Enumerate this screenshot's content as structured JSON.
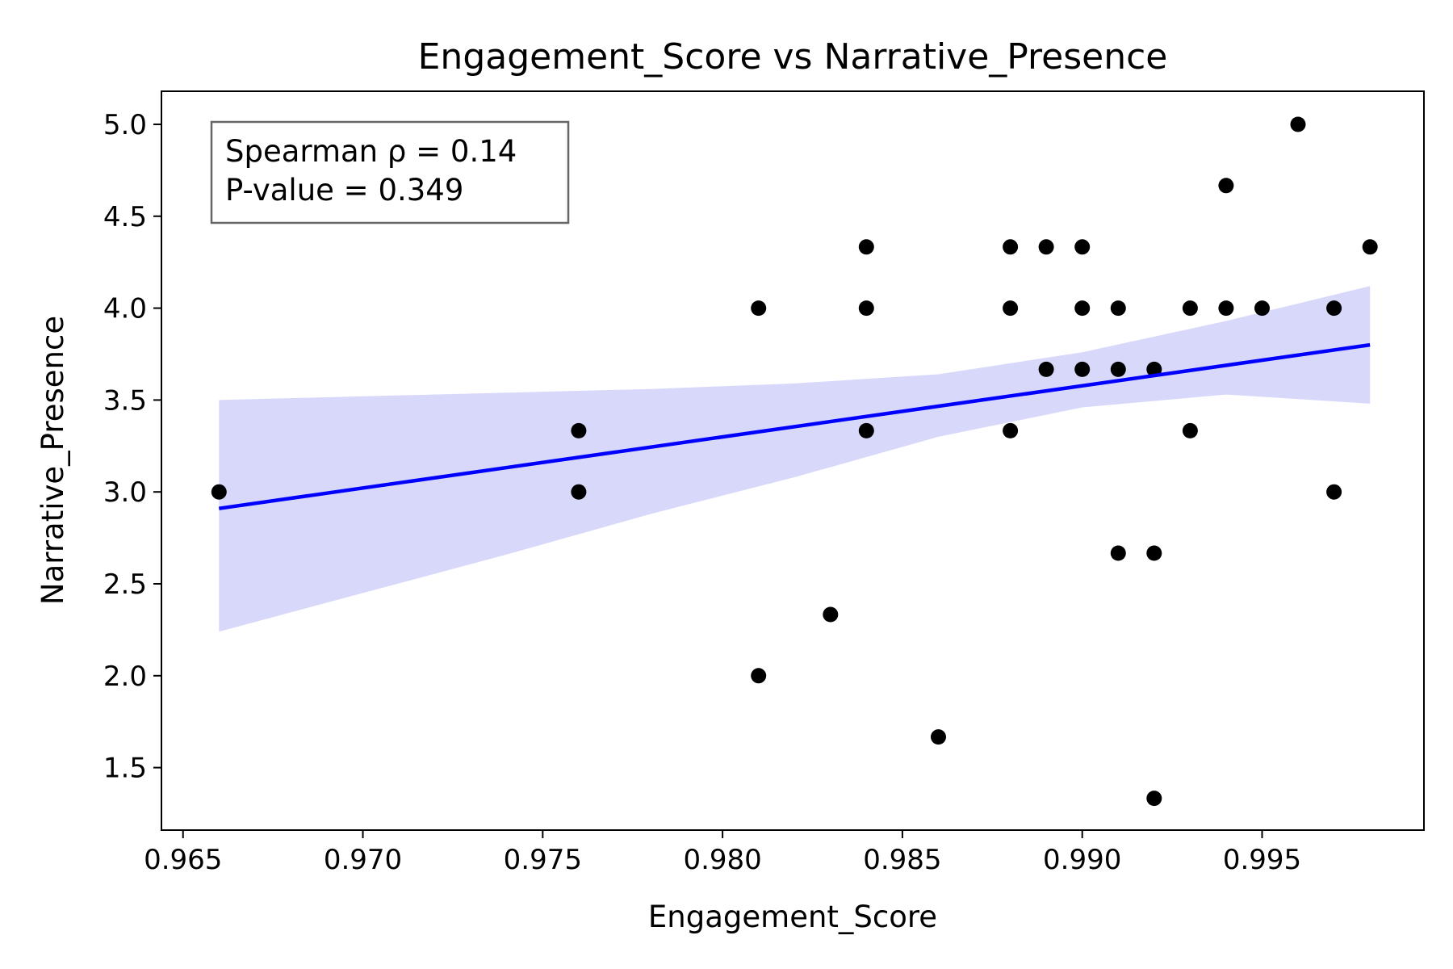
{
  "chart_data": {
    "type": "scatter",
    "title": "Engagement_Score vs Narrative_Presence",
    "xlabel": "Engagement_Score",
    "ylabel": "Narrative_Presence",
    "xlim": [
      0.9644,
      0.9995
    ],
    "ylim": [
      1.16,
      5.18
    ],
    "xticks": [
      "0.965",
      "0.970",
      "0.975",
      "0.980",
      "0.985",
      "0.990",
      "0.995"
    ],
    "yticks": [
      "1.5",
      "2.0",
      "2.5",
      "3.0",
      "3.5",
      "4.0",
      "4.5",
      "5.0"
    ],
    "grid": false,
    "annotation": [
      "Spearman ρ = 0.14",
      "P-value = 0.349"
    ],
    "annotation_position": "top-left",
    "colors": {
      "points": "#000000",
      "fit_line": "#0000ff",
      "confidence_band": "#d8d8fb",
      "box_border": "#666666"
    },
    "points": [
      {
        "x": 0.966,
        "y": 3.0
      },
      {
        "x": 0.976,
        "y": 3.333
      },
      {
        "x": 0.976,
        "y": 3.0
      },
      {
        "x": 0.981,
        "y": 4.0
      },
      {
        "x": 0.981,
        "y": 2.0
      },
      {
        "x": 0.983,
        "y": 2.333
      },
      {
        "x": 0.984,
        "y": 4.333
      },
      {
        "x": 0.984,
        "y": 4.0
      },
      {
        "x": 0.984,
        "y": 3.333
      },
      {
        "x": 0.986,
        "y": 1.667
      },
      {
        "x": 0.988,
        "y": 4.333
      },
      {
        "x": 0.988,
        "y": 4.0
      },
      {
        "x": 0.988,
        "y": 3.333
      },
      {
        "x": 0.989,
        "y": 4.333
      },
      {
        "x": 0.989,
        "y": 3.667
      },
      {
        "x": 0.99,
        "y": 4.333
      },
      {
        "x": 0.99,
        "y": 4.0
      },
      {
        "x": 0.99,
        "y": 3.667
      },
      {
        "x": 0.991,
        "y": 4.0
      },
      {
        "x": 0.991,
        "y": 3.667
      },
      {
        "x": 0.991,
        "y": 2.667
      },
      {
        "x": 0.992,
        "y": 3.667
      },
      {
        "x": 0.992,
        "y": 2.667
      },
      {
        "x": 0.992,
        "y": 1.333
      },
      {
        "x": 0.993,
        "y": 4.0
      },
      {
        "x": 0.993,
        "y": 3.333
      },
      {
        "x": 0.994,
        "y": 4.667
      },
      {
        "x": 0.994,
        "y": 4.0
      },
      {
        "x": 0.995,
        "y": 4.0
      },
      {
        "x": 0.996,
        "y": 5.0
      },
      {
        "x": 0.997,
        "y": 4.0
      },
      {
        "x": 0.997,
        "y": 3.0
      },
      {
        "x": 0.998,
        "y": 4.333
      }
    ],
    "fit_line": {
      "x": [
        0.966,
        0.998
      ],
      "y": [
        2.91,
        3.8
      ]
    },
    "confidence_band": [
      {
        "x": 0.966,
        "lower": 2.24,
        "upper": 3.5
      },
      {
        "x": 0.97,
        "lower": 2.45,
        "upper": 3.52
      },
      {
        "x": 0.974,
        "lower": 2.66,
        "upper": 3.54
      },
      {
        "x": 0.978,
        "lower": 2.88,
        "upper": 3.56
      },
      {
        "x": 0.982,
        "lower": 3.08,
        "upper": 3.59
      },
      {
        "x": 0.986,
        "lower": 3.3,
        "upper": 3.64
      },
      {
        "x": 0.99,
        "lower": 3.46,
        "upper": 3.76
      },
      {
        "x": 0.994,
        "lower": 3.53,
        "upper": 3.93
      },
      {
        "x": 0.998,
        "lower": 3.48,
        "upper": 4.12
      }
    ]
  }
}
